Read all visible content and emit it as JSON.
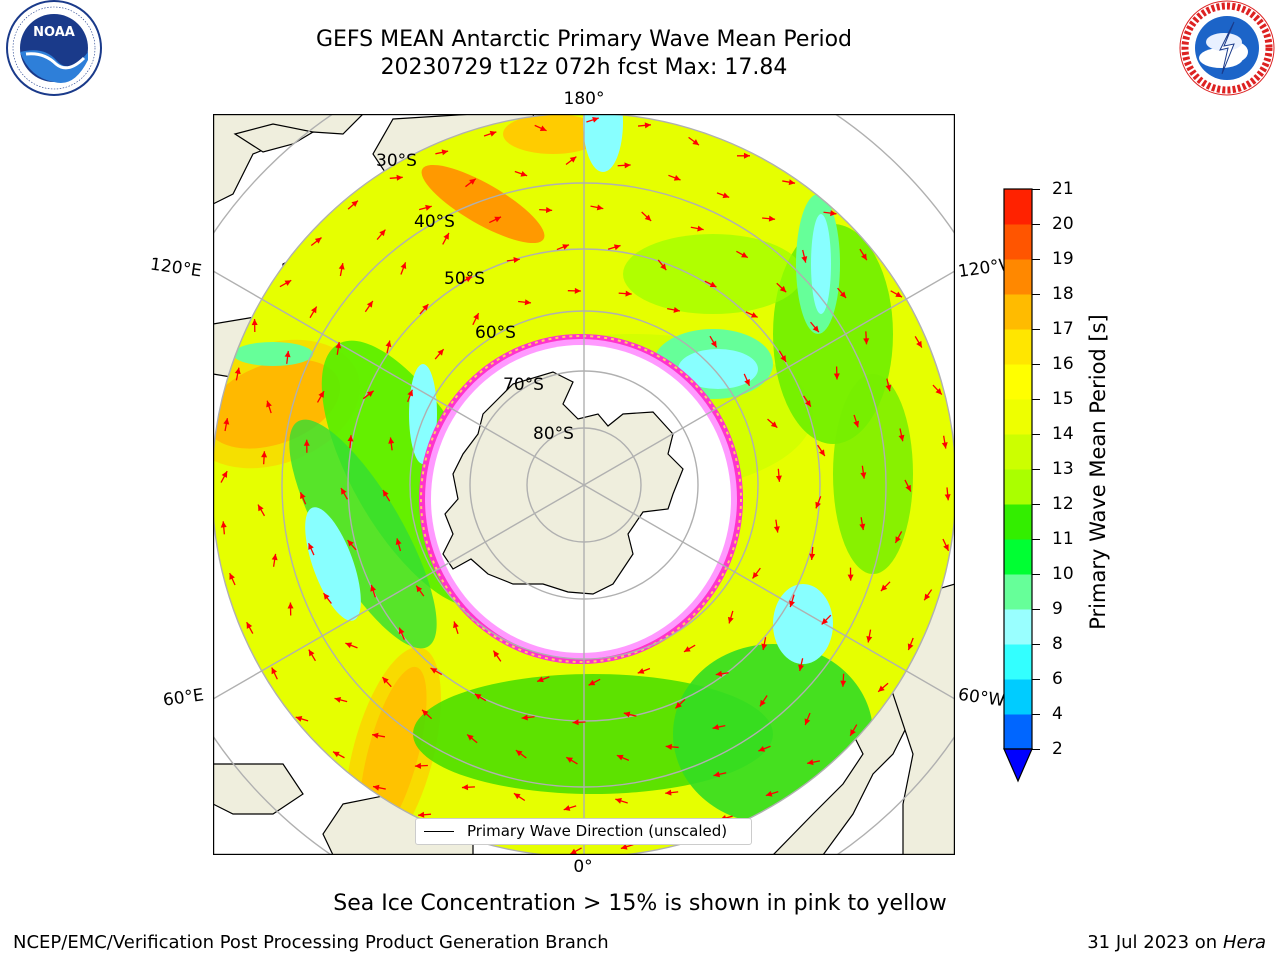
{
  "header": {
    "title_line1": "GEFS MEAN Antarctic Primary Wave Mean Period",
    "title_line2": "20230729 t12z 072h fcst   Max: 17.84"
  },
  "logos": {
    "left": {
      "name": "noaa-logo",
      "text": "NOAA",
      "ring_text": "NATIONAL OCEANIC AND ATMOSPHERIC ADMINISTRATION · U.S. DEPARTMENT OF COMMERCE"
    },
    "right": {
      "name": "nws-logo",
      "ring_text": "NATIONAL WEATHER SERVICE"
    }
  },
  "map": {
    "projection": "south-polar-stereographic",
    "longitude_labels": {
      "top": "180°",
      "bottom": "0°",
      "left_upper": "120°E",
      "left_lower": "60°E",
      "right_upper": "120°W",
      "right_lower": "60°W"
    },
    "latitude_labels": [
      "30°S",
      "40°S",
      "50°S",
      "60°S",
      "70°S",
      "80°S"
    ],
    "legend": "Primary Wave Direction (unscaled)",
    "arrow_color": "#ff0000",
    "land_color": "#efeedd",
    "sea_ice_colors": [
      "#ff33cc",
      "#ff99ff",
      "#ffcc66"
    ]
  },
  "colorbar": {
    "label": "Primary Wave Mean Period [s]",
    "ticks": [
      "2",
      "4",
      "6",
      "8",
      "9",
      "10",
      "11",
      "12",
      "13",
      "14",
      "15",
      "16",
      "17",
      "18",
      "19",
      "20",
      "21"
    ],
    "colors": [
      "#0066ff",
      "#00ccff",
      "#33ffff",
      "#99ffff",
      "#66ff99",
      "#00ff33",
      "#33ee00",
      "#aaff00",
      "#ccff00",
      "#eeff00",
      "#ffff00",
      "#ffe600",
      "#ffbb00",
      "#ff8800",
      "#ff5500",
      "#ff2200"
    ],
    "extend_color": "#0000ff"
  },
  "notes": {
    "sea_ice": "Sea Ice Concentration > 15% is shown in pink to yellow"
  },
  "footer": {
    "left": "NCEP/EMC/Verification Post Processing Product Generation Branch",
    "right_prefix": "31 Jul 2023 on ",
    "right_host": "Hera"
  }
}
